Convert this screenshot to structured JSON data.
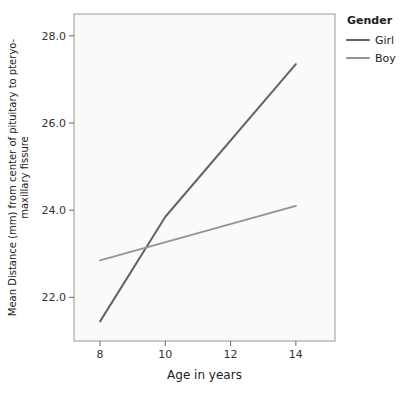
{
  "chart_data": {
    "type": "line",
    "xlabel": "Age in years",
    "ylabel": "Mean Distance (mm) from center of pituitary to pteryo-\nmaxillary fissure",
    "legend_title": "Gender",
    "legend": "right",
    "grid": false,
    "xlim": [
      7.2,
      15.2
    ],
    "ylim": [
      21.0,
      28.5
    ],
    "xticks": [
      8,
      10,
      12,
      14
    ],
    "yticks": [
      {
        "value": 22.0,
        "label": "22.0"
      },
      {
        "value": 24.0,
        "label": "24.0"
      },
      {
        "value": 26.0,
        "label": "26.0"
      },
      {
        "value": 28.0,
        "label": "28.0"
      }
    ],
    "series": [
      {
        "name": "Girl",
        "color": "#646464",
        "x": [
          8,
          10,
          14
        ],
        "values": [
          21.45,
          23.85,
          27.35
        ]
      },
      {
        "name": "Boy",
        "color": "#949494",
        "x": [
          8,
          14
        ],
        "values": [
          22.85,
          24.1
        ]
      }
    ]
  }
}
